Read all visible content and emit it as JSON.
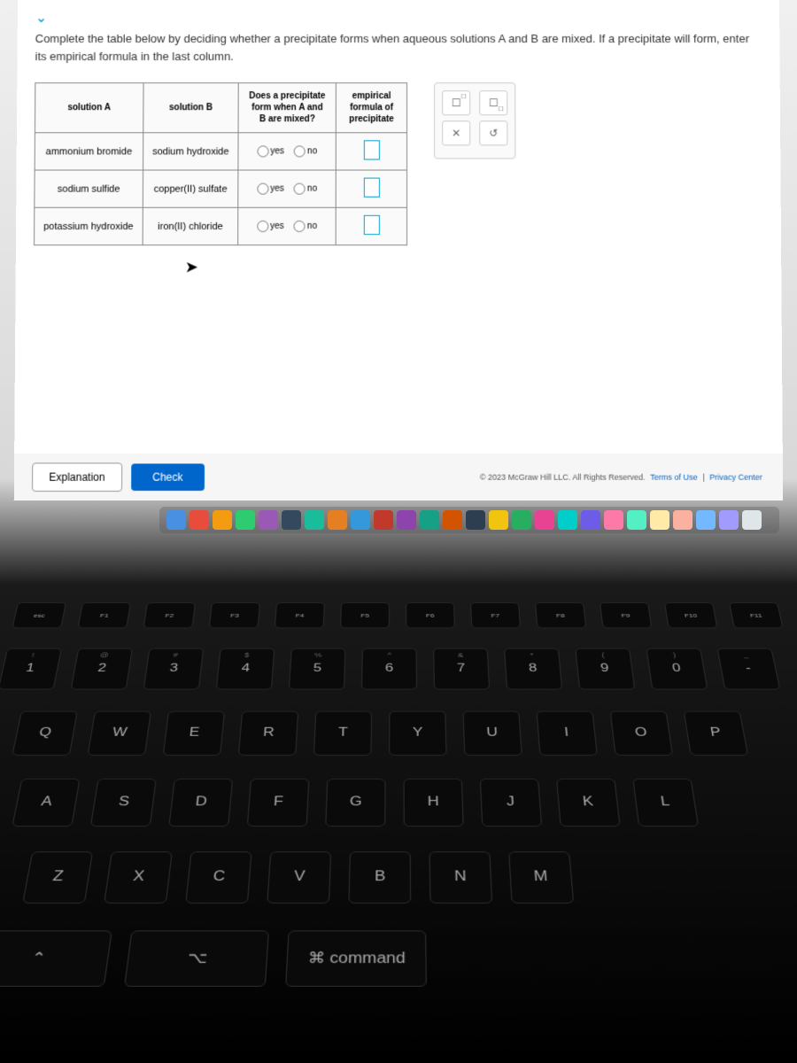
{
  "instructions": "Complete the table below by deciding whether a precipitate forms when aqueous solutions A and B are mixed. If a precipitate will form, enter its empirical formula in the last column.",
  "table": {
    "headers": {
      "colA": "solution A",
      "colB": "solution B",
      "colC": "Does a precipitate form when A and B are mixed?",
      "colD": "empirical formula of precipitate"
    },
    "yes_label": "yes",
    "no_label": "no",
    "rows": [
      {
        "a": "ammonium bromide",
        "b": "sodium hydroxide"
      },
      {
        "a": "sodium sulfide",
        "b": "copper(II) sulfate"
      },
      {
        "a": "potassium hydroxide",
        "b": "iron(II) chloride"
      }
    ]
  },
  "toolbox": {
    "super_label": "☐▫",
    "sub_label": "☐▫",
    "close_label": "✕",
    "reset_label": "↺"
  },
  "buttons": {
    "explanation": "Explanation",
    "check": "Check"
  },
  "footer": {
    "copyright": "© 2023 McGraw Hill LLC. All Rights Reserved.",
    "terms": "Terms of Use",
    "privacy": "Privacy Center"
  },
  "dock_colors": [
    "#4a90e2",
    "#e74c3c",
    "#f39c12",
    "#2ecc71",
    "#9b59b6",
    "#34495e",
    "#1abc9c",
    "#e67e22",
    "#3498db",
    "#c0392b",
    "#8e44ad",
    "#16a085",
    "#d35400",
    "#2c3e50",
    "#f1c40f",
    "#27ae60",
    "#e84393",
    "#00cec9",
    "#6c5ce7",
    "#fd79a8",
    "#55efc4",
    "#ffeaa7",
    "#fab1a0",
    "#74b9ff",
    "#a29bfe",
    "#dfe6e9"
  ],
  "keyboard": {
    "fn_row": [
      "esc",
      "F1",
      "F2",
      "F3",
      "F4",
      "F5",
      "F6",
      "F7",
      "F8",
      "F9",
      "F10",
      "F11"
    ],
    "num_row": [
      {
        "top": "!",
        "main": "1"
      },
      {
        "top": "@",
        "main": "2"
      },
      {
        "top": "#",
        "main": "3"
      },
      {
        "top": "$",
        "main": "4"
      },
      {
        "top": "%",
        "main": "5"
      },
      {
        "top": "^",
        "main": "6"
      },
      {
        "top": "&",
        "main": "7"
      },
      {
        "top": "*",
        "main": "8"
      },
      {
        "top": "(",
        "main": "9"
      },
      {
        "top": ")",
        "main": "0"
      },
      {
        "top": "_",
        "main": "-"
      }
    ],
    "row_q": [
      "Q",
      "W",
      "E",
      "R",
      "T",
      "Y",
      "U",
      "I",
      "O",
      "P"
    ],
    "row_a": [
      "A",
      "S",
      "D",
      "F",
      "G",
      "H",
      "J",
      "K",
      "L"
    ],
    "row_z": [
      "Z",
      "X",
      "C",
      "V",
      "B",
      "N",
      "M"
    ],
    "bottom": [
      "⌃",
      "⌥",
      "⌘ command"
    ]
  }
}
